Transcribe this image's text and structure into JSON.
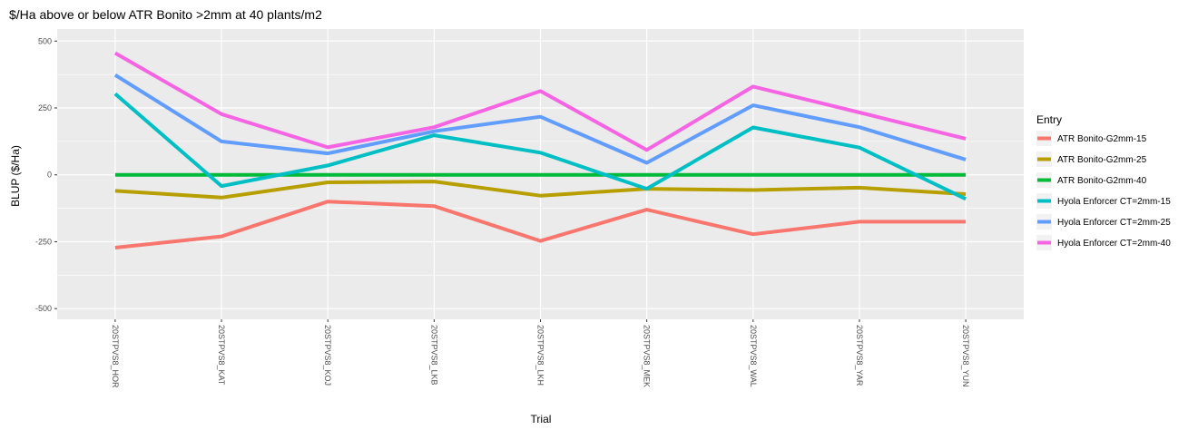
{
  "chart_data": {
    "type": "line",
    "title": "$/Ha above or below ATR Bonito >2mm at 40 plants/m2",
    "xlabel": "Trial",
    "ylabel": "BLUP ($/Ha)",
    "categories": [
      "20STPVS8_HOR",
      "20STPVS8_KAT",
      "20STPVS8_KOJ",
      "20STPVS8_LKB",
      "20STPVS8_LKH",
      "20STPVS8_MEK",
      "20STPVS8_WAL",
      "20STPVS8_YAR",
      "20STPVS8_YUN"
    ],
    "ylim": [
      -540,
      545
    ],
    "yticks": [
      {
        "value": 500,
        "label": "500"
      },
      {
        "value": 250,
        "label": "250"
      },
      {
        "value": 0,
        "label": "0"
      },
      {
        "value": -250,
        "label": "-250"
      },
      {
        "value": -500,
        "label": "-500"
      }
    ],
    "grid": true,
    "legend": {
      "title": "Entry",
      "position": "right"
    },
    "series": [
      {
        "name": "ATR Bonito-G2mm-15",
        "color": "#F8766D",
        "values": [
          -272,
          -230,
          -100,
          -117,
          -247,
          -130,
          -222,
          -175,
          -175
        ]
      },
      {
        "name": "ATR Bonito-G2mm-25",
        "color": "#B79F00",
        "values": [
          -60,
          -85,
          -28,
          -25,
          -78,
          -52,
          -57,
          -48,
          -72
        ]
      },
      {
        "name": "ATR Bonito-G2mm-40",
        "color": "#00BA38",
        "values": [
          0,
          0,
          0,
          0,
          0,
          0,
          0,
          0,
          0
        ]
      },
      {
        "name": "Hyola Enforcer CT=2mm-15",
        "color": "#00BFC4",
        "values": [
          303,
          -42,
          35,
          148,
          83,
          -52,
          177,
          102,
          -90
        ]
      },
      {
        "name": "Hyola Enforcer CT=2mm-25",
        "color": "#619CFF",
        "values": [
          373,
          125,
          80,
          163,
          217,
          45,
          260,
          178,
          57
        ]
      },
      {
        "name": "Hyola Enforcer CT=2mm-40",
        "color": "#F564E3",
        "values": [
          455,
          227,
          103,
          178,
          313,
          93,
          330,
          233,
          135
        ]
      }
    ]
  }
}
